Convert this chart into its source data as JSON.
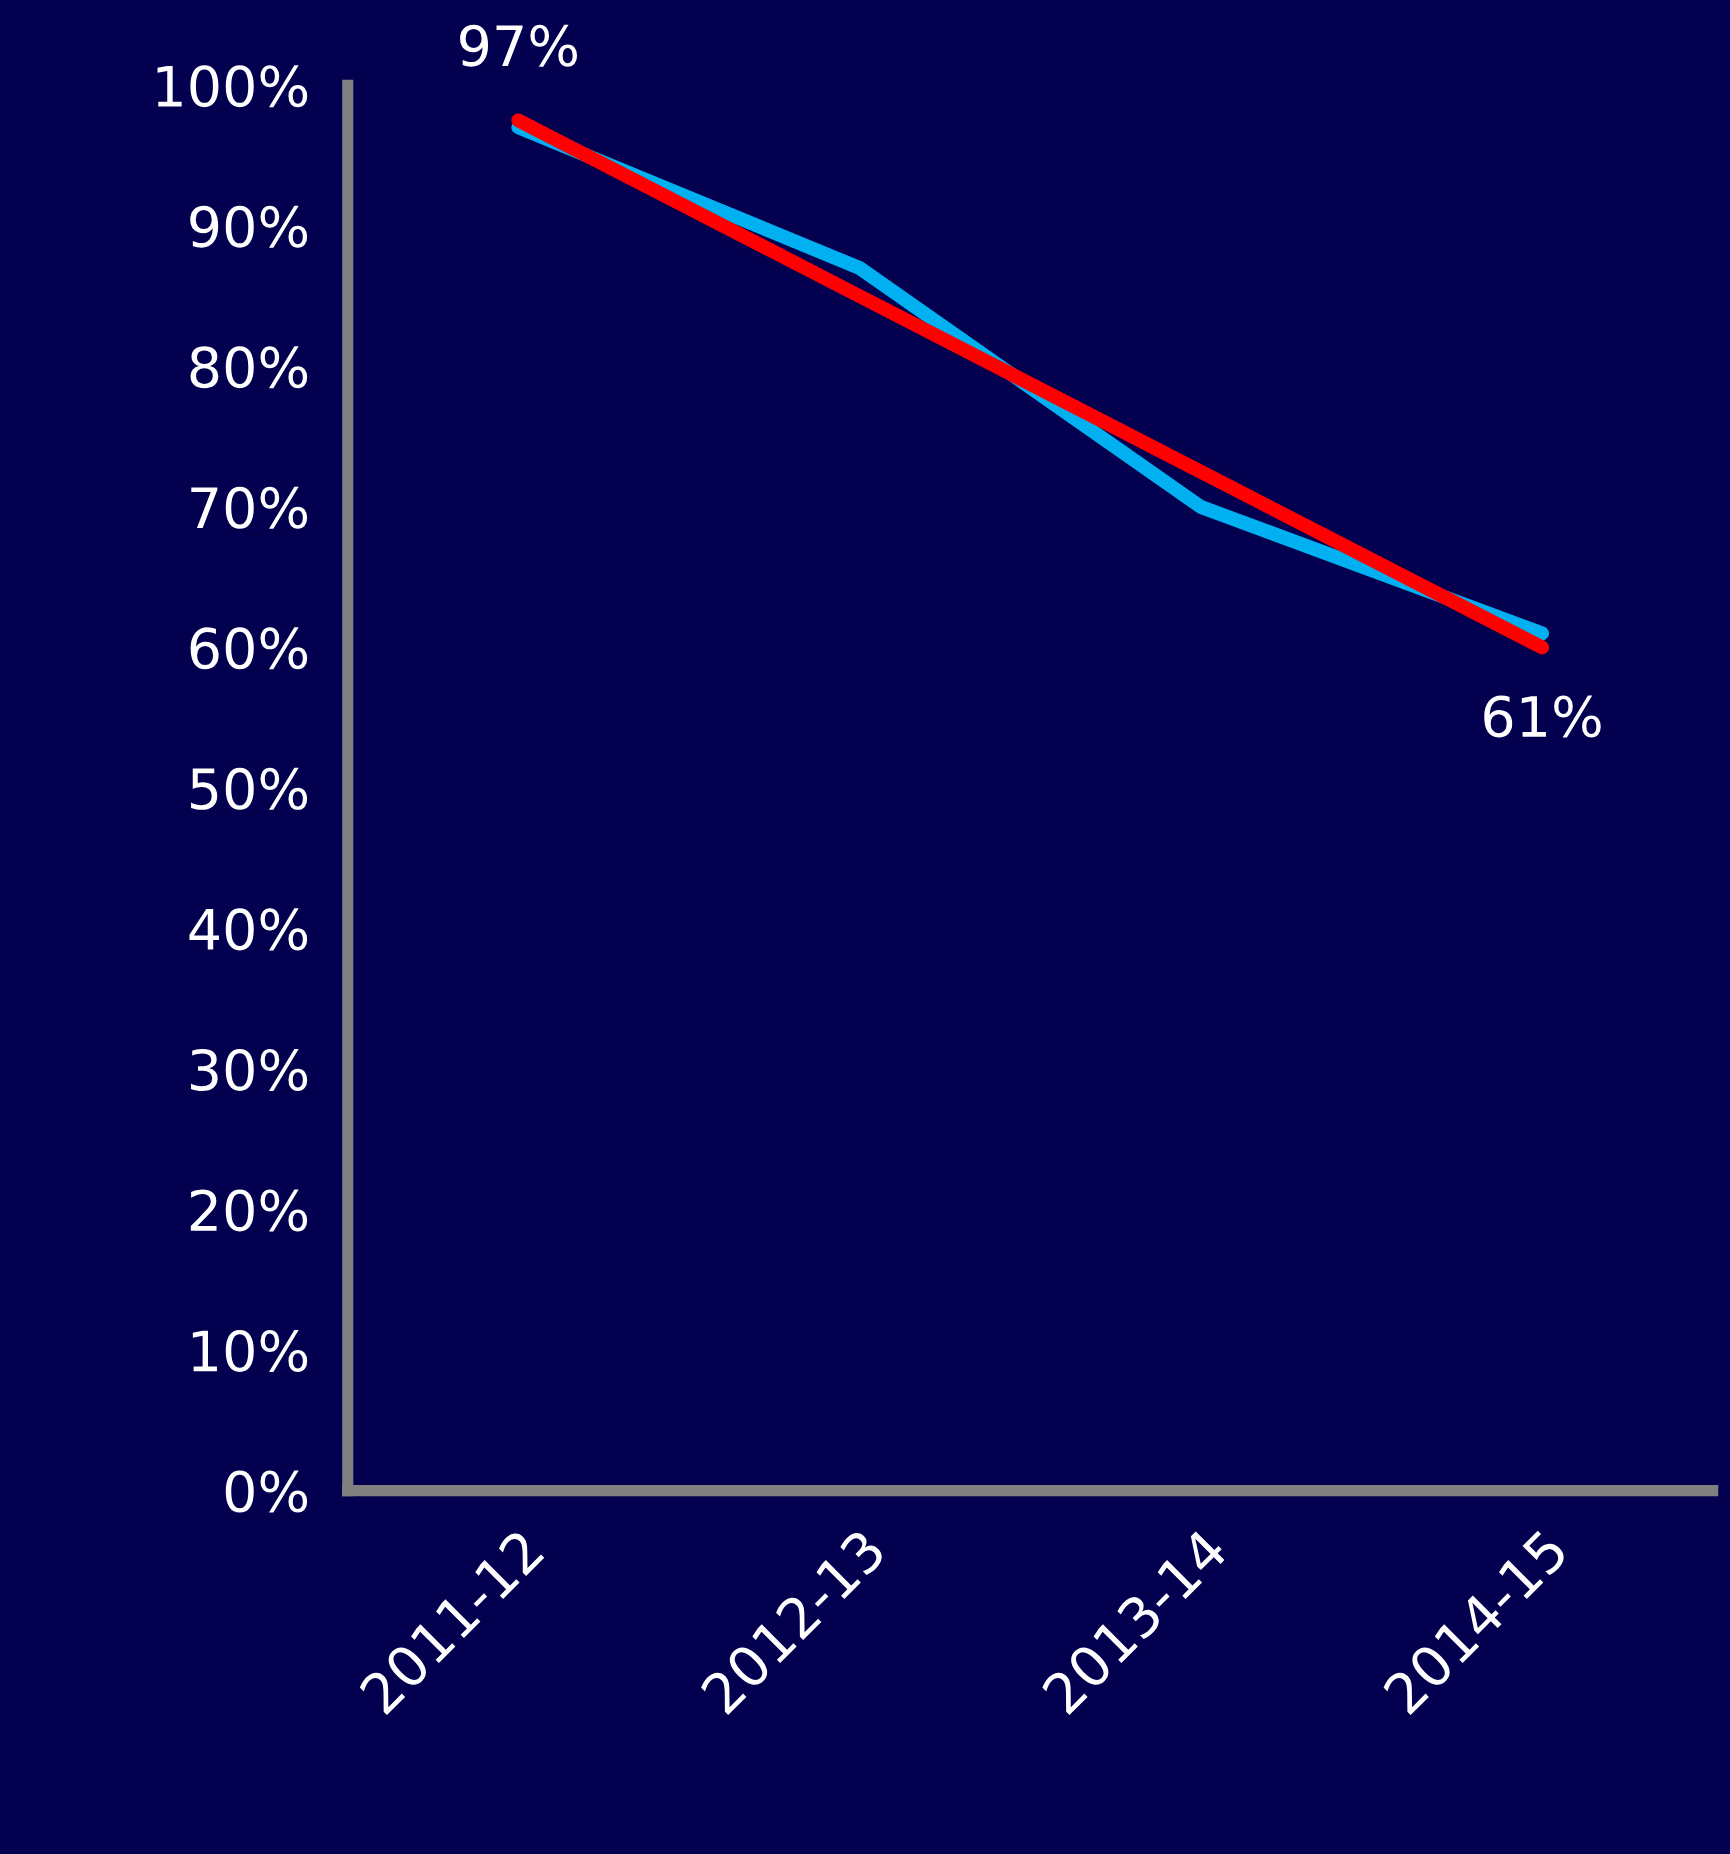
{
  "chart_data": {
    "type": "line",
    "categories": [
      "2011-12",
      "2012-13",
      "2013-14",
      "2014-15"
    ],
    "series": [
      {
        "color": "#00b0f0",
        "values": [
          97,
          87,
          70,
          61
        ],
        "value_labels": [
          "97%",
          null,
          null,
          "61%"
        ]
      },
      {
        "color": "#ff0000",
        "values": [
          97.5,
          85,
          72.5,
          60
        ]
      }
    ],
    "ylim": [
      0,
      100
    ],
    "yticks": [
      {
        "value": 0,
        "label": "0%"
      },
      {
        "value": 10,
        "label": "10%"
      },
      {
        "value": 20,
        "label": "20%"
      },
      {
        "value": 30,
        "label": "30%"
      },
      {
        "value": 40,
        "label": "40%"
      },
      {
        "value": 50,
        "label": "50%"
      },
      {
        "value": 60,
        "label": "60%"
      },
      {
        "value": 70,
        "label": "70%"
      },
      {
        "value": 80,
        "label": "80%"
      },
      {
        "value": 90,
        "label": "90%"
      },
      {
        "value": 100,
        "label": "100%"
      }
    ],
    "grid": false,
    "legend": false,
    "marker": "none",
    "line_style": "solid"
  }
}
